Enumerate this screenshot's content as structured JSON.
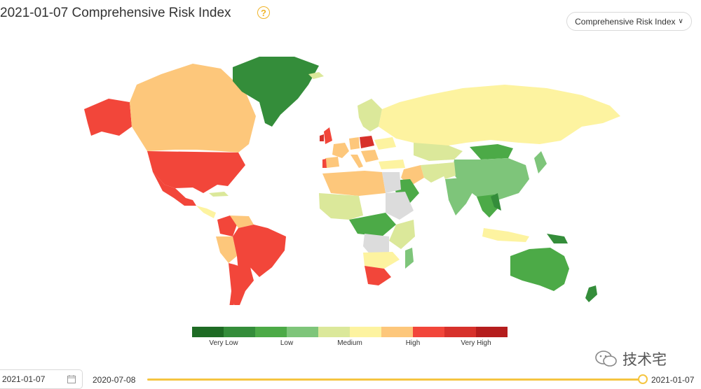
{
  "header": {
    "title": "2021-01-07 Comprehensive Risk Index",
    "help_glyph": "?",
    "metric_select_value": "Comprehensive Risk Index"
  },
  "map": {
    "risk_levels": [
      {
        "level": "very-low-1",
        "color": "#1e6b24"
      },
      {
        "level": "very-low-2",
        "color": "#348d3a"
      },
      {
        "level": "low-1",
        "color": "#4caa47"
      },
      {
        "level": "low-2",
        "color": "#7ec57a"
      },
      {
        "level": "medium-1",
        "color": "#dbe89a"
      },
      {
        "level": "medium-2",
        "color": "#fdf3a0"
      },
      {
        "level": "high-1",
        "color": "#fdc77b"
      },
      {
        "level": "high-2",
        "color": "#f2463a"
      },
      {
        "level": "very-high-1",
        "color": "#d7312b"
      },
      {
        "level": "very-high-2",
        "color": "#b51d1d"
      }
    ],
    "no_data_color": "#dcdcdc",
    "legend_labels": [
      "Very Low",
      "Low",
      "Medium",
      "High",
      "Very High"
    ]
  },
  "footer": {
    "selected_date": "2021-01-07",
    "range_start": "2020-07-08",
    "range_end": "2021-01-07",
    "slider_position": 1.0
  },
  "watermark": {
    "text": "技术宅"
  }
}
